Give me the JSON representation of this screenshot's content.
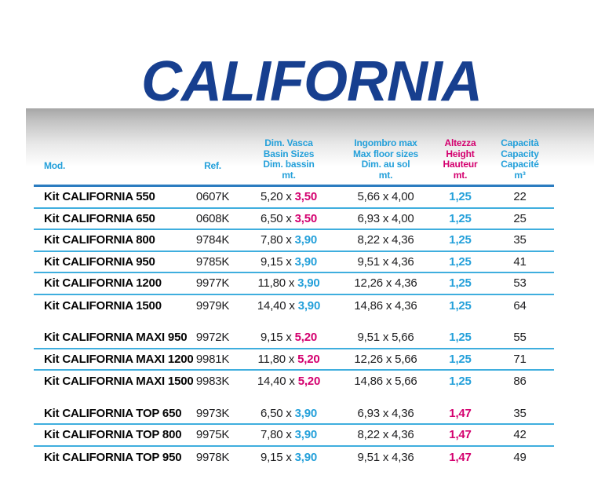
{
  "page": {
    "title": "CALIFORNIA"
  },
  "colors": {
    "title_navy": "#173f8f",
    "header_light_blue": "#24a0da",
    "header_magenta": "#d4006f",
    "row_divider_blue": "#3faede",
    "header_divider_blue": "#2b7cc0",
    "body_text": "#1d1d1f",
    "band_gray_top": "#a6a6a6"
  },
  "table": {
    "columns": [
      {
        "id": "model",
        "lines": [
          "Mod."
        ],
        "color": "light_blue",
        "align": "left"
      },
      {
        "id": "ref",
        "lines": [
          "Ref."
        ],
        "color": "light_blue",
        "align": "center"
      },
      {
        "id": "basin",
        "lines": [
          "Dim. Vasca",
          "Basin Sizes",
          "Dim. bassin",
          "mt."
        ],
        "color": "light_blue",
        "align": "center"
      },
      {
        "id": "floor",
        "lines": [
          "Ingombro max",
          "Max floor sizes",
          "Dim. au sol",
          "mt."
        ],
        "color": "light_blue",
        "align": "center"
      },
      {
        "id": "height",
        "lines": [
          "Altezza",
          "Height",
          "Hauteur",
          "mt."
        ],
        "color": "magenta",
        "align": "center"
      },
      {
        "id": "capacity",
        "lines": [
          "Capacità",
          "Capacity",
          "Capacité",
          "m³"
        ],
        "color": "light_blue",
        "align": "center"
      }
    ],
    "groups": [
      {
        "name": "california",
        "rows": [
          {
            "model": "Kit CALIFORNIA 550",
            "ref": "0607K",
            "basin_base": "5,20 x",
            "basin_width": "3,50",
            "basin_width_color": "magenta",
            "floor": "5,66 x 4,00",
            "height": "1,25",
            "height_color": "blue",
            "capacity": "22"
          },
          {
            "model": "Kit CALIFORNIA 650",
            "ref": "0608K",
            "basin_base": "6,50 x",
            "basin_width": "3,50",
            "basin_width_color": "magenta",
            "floor": "6,93 x 4,00",
            "height": "1,25",
            "height_color": "blue",
            "capacity": "25"
          },
          {
            "model": "Kit CALIFORNIA 800",
            "ref": "9784K",
            "basin_base": "7,80 x",
            "basin_width": "3,90",
            "basin_width_color": "blue",
            "floor": "8,22 x 4,36",
            "height": "1,25",
            "height_color": "blue",
            "capacity": "35"
          },
          {
            "model": "Kit CALIFORNIA 950",
            "ref": "9785K",
            "basin_base": "9,15 x",
            "basin_width": "3,90",
            "basin_width_color": "blue",
            "floor": "9,51 x 4,36",
            "height": "1,25",
            "height_color": "blue",
            "capacity": "41"
          },
          {
            "model": "Kit CALIFORNIA 1200",
            "ref": "9977K",
            "basin_base": "11,80 x",
            "basin_width": "3,90",
            "basin_width_color": "blue",
            "floor": "12,26 x 4,36",
            "height": "1,25",
            "height_color": "blue",
            "capacity": "53"
          },
          {
            "model": "Kit CALIFORNIA 1500",
            "ref": "9979K",
            "basin_base": "14,40 x",
            "basin_width": "3,90",
            "basin_width_color": "blue",
            "floor": "14,86 x 4,36",
            "height": "1,25",
            "height_color": "blue",
            "capacity": "64"
          }
        ]
      },
      {
        "name": "california-maxi",
        "rows": [
          {
            "model": "Kit CALIFORNIA MAXI 950",
            "ref": "9972K",
            "basin_base": "9,15 x",
            "basin_width": "5,20",
            "basin_width_color": "magenta",
            "floor": "9,51 x 5,66",
            "height": "1,25",
            "height_color": "blue",
            "capacity": "55"
          },
          {
            "model": "Kit CALIFORNIA MAXI 1200",
            "ref": "9981K",
            "basin_base": "11,80 x",
            "basin_width": "5,20",
            "basin_width_color": "magenta",
            "floor": "12,26 x 5,66",
            "height": "1,25",
            "height_color": "blue",
            "capacity": "71"
          },
          {
            "model": "Kit CALIFORNIA MAXI 1500",
            "ref": "9983K",
            "basin_base": "14,40 x",
            "basin_width": "5,20",
            "basin_width_color": "magenta",
            "floor": "14,86 x 5,66",
            "height": "1,25",
            "height_color": "blue",
            "capacity": "86"
          }
        ]
      },
      {
        "name": "california-top",
        "rows": [
          {
            "model": "Kit CALIFORNIA TOP 650",
            "ref": "9973K",
            "basin_base": "6,50 x",
            "basin_width": "3,90",
            "basin_width_color": "blue",
            "floor": "6,93 x 4,36",
            "height": "1,47",
            "height_color": "magenta",
            "capacity": "35"
          },
          {
            "model": "Kit CALIFORNIA TOP 800",
            "ref": "9975K",
            "basin_base": "7,80 x",
            "basin_width": "3,90",
            "basin_width_color": "blue",
            "floor": "8,22 x 4,36",
            "height": "1,47",
            "height_color": "magenta",
            "capacity": "42"
          },
          {
            "model": "Kit CALIFORNIA TOP 950",
            "ref": "9978K",
            "basin_base": "9,15 x",
            "basin_width": "3,90",
            "basin_width_color": "blue",
            "floor": "9,51 x 4,36",
            "height": "1,47",
            "height_color": "magenta",
            "capacity": "49"
          }
        ]
      }
    ]
  }
}
